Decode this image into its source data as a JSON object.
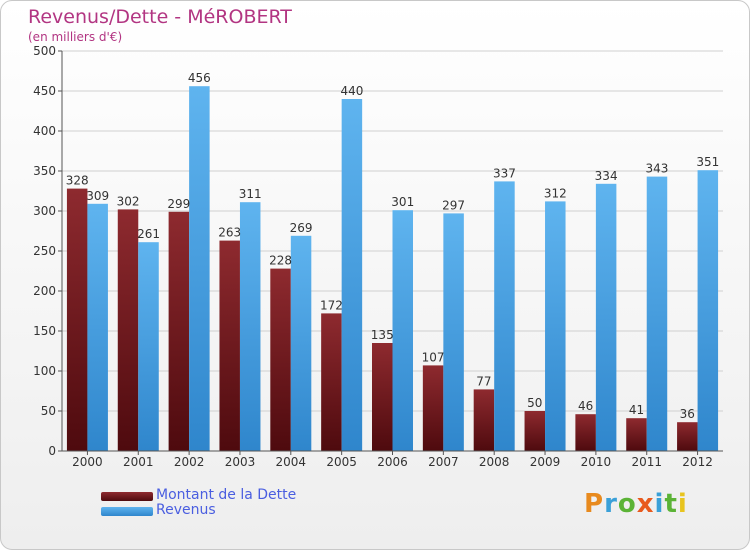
{
  "chart_data": {
    "type": "bar",
    "title": "Revenus/Dette - MéROBERT",
    "subtitle": "(en milliers d'€)",
    "categories": [
      "2000",
      "2001",
      "2002",
      "2003",
      "2004",
      "2005",
      "2006",
      "2007",
      "2008",
      "2009",
      "2010",
      "2011",
      "2012"
    ],
    "series": [
      {
        "name": "Montant de la Dette",
        "color": "#7a1a1f",
        "values": [
          328,
          302,
          299,
          263,
          228,
          172,
          135,
          107,
          77,
          50,
          46,
          41,
          36
        ]
      },
      {
        "name": "Revenus",
        "color": "#4aa3e6",
        "values": [
          309,
          261,
          456,
          311,
          269,
          440,
          301,
          297,
          337,
          312,
          334,
          343,
          351
        ]
      }
    ],
    "ylim": [
      0,
      500
    ],
    "yticks": [
      0,
      50,
      100,
      150,
      200,
      250,
      300,
      350,
      400,
      450,
      500
    ],
    "grid": true,
    "legend": "bottom-left"
  },
  "logo_text": "Proxiti",
  "colors": {
    "title": "#b23582",
    "legend_text": "#4a5ee0",
    "grid": "#d0d0d0"
  }
}
